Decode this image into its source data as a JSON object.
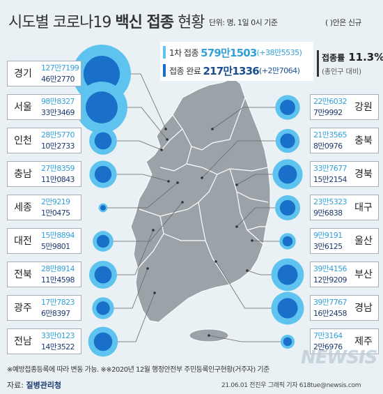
{
  "title": {
    "part1": "시도별 코로나19 ",
    "part2": "백신 접종",
    "part3": " 현황"
  },
  "unit_note": "단위: 명, 1일 0시 기준",
  "paren_note": "( )안은 신규",
  "summary": {
    "first_label": "1차 접종",
    "first_value": "579만1503",
    "first_new": "(+38만5535)",
    "complete_label": "접종 완료",
    "complete_value": "217만1336",
    "complete_new": "(+2만7064)"
  },
  "rate": {
    "label": "접종률",
    "value": "11.3%",
    "note": "(총인구 대비)"
  },
  "colors": {
    "first_dose": "#5ec3ef",
    "completed": "#1a6fc8",
    "map": "#9ba3a9",
    "map_border": "#ffffff",
    "leader": "#666666"
  },
  "chart_data": {
    "type": "bubble-map",
    "title": "시도별 코로나19 백신 접종 현황",
    "unit": "명",
    "series": [
      {
        "name": "1차 접종",
        "color": "#5ec3ef"
      },
      {
        "name": "접종 완료",
        "color": "#1a6fc8"
      }
    ],
    "regions": [
      {
        "name": "경기",
        "side": "left",
        "first": 1277199,
        "complete": 462770,
        "first_text": "127만7199",
        "complete_text": "46만2770"
      },
      {
        "name": "서울",
        "side": "left",
        "first": 988327,
        "complete": 333469,
        "first_text": "98만8327",
        "complete_text": "33만3469"
      },
      {
        "name": "인천",
        "side": "left",
        "first": 285770,
        "complete": 102733,
        "first_text": "28만5770",
        "complete_text": "10만2733"
      },
      {
        "name": "충남",
        "side": "left",
        "first": 278359,
        "complete": 110843,
        "first_text": "27만8359",
        "complete_text": "11만0843"
      },
      {
        "name": "세종",
        "side": "left",
        "first": 29219,
        "complete": 10475,
        "first_text": "2만9219",
        "complete_text": "1만0475"
      },
      {
        "name": "대전",
        "side": "left",
        "first": 158894,
        "complete": 59801,
        "first_text": "15만8894",
        "complete_text": "5만9801"
      },
      {
        "name": "전북",
        "side": "left",
        "first": 288914,
        "complete": 114598,
        "first_text": "28만8914",
        "complete_text": "11만4598"
      },
      {
        "name": "광주",
        "side": "left",
        "first": 177823,
        "complete": 68397,
        "first_text": "17만7823",
        "complete_text": "6만8397"
      },
      {
        "name": "전남",
        "side": "left",
        "first": 330123,
        "complete": 143522,
        "first_text": "33만0123",
        "complete_text": "14만3522"
      },
      {
        "name": "강원",
        "side": "right",
        "first": 226032,
        "complete": 79992,
        "first_text": "22만6032",
        "complete_text": "7만9992"
      },
      {
        "name": "충북",
        "side": "right",
        "first": 213565,
        "complete": 80976,
        "first_text": "21만3565",
        "complete_text": "8만0976"
      },
      {
        "name": "경북",
        "side": "right",
        "first": 337677,
        "complete": 152154,
        "first_text": "33만7677",
        "complete_text": "15만2154"
      },
      {
        "name": "대구",
        "side": "right",
        "first": 235323,
        "complete": 96838,
        "first_text": "23만5323",
        "complete_text": "9만6838"
      },
      {
        "name": "울산",
        "side": "right",
        "first": 99191,
        "complete": 36125,
        "first_text": "9만9191",
        "complete_text": "3만6125"
      },
      {
        "name": "부산",
        "side": "right",
        "first": 394156,
        "complete": 129209,
        "first_text": "39만4156",
        "complete_text": "12만9209"
      },
      {
        "name": "경남",
        "side": "right",
        "first": 397767,
        "complete": 162458,
        "first_text": "39만7767",
        "complete_text": "16만2458"
      },
      {
        "name": "제주",
        "side": "right",
        "first": 73164,
        "complete": 26976,
        "first_text": "7만3164",
        "complete_text": "2만6976"
      }
    ]
  },
  "footnote": "※예방접종등록에 따라 변동 가능. ※※2020년 12월 행정안전부 주민등록인구현황(거주자) 기준",
  "source_label": "자료:",
  "source_value": "질병관리청",
  "credit": "21.06.01   전진우 그래픽 기자 618tue@newsis.com",
  "watermark": "NEWSIS"
}
